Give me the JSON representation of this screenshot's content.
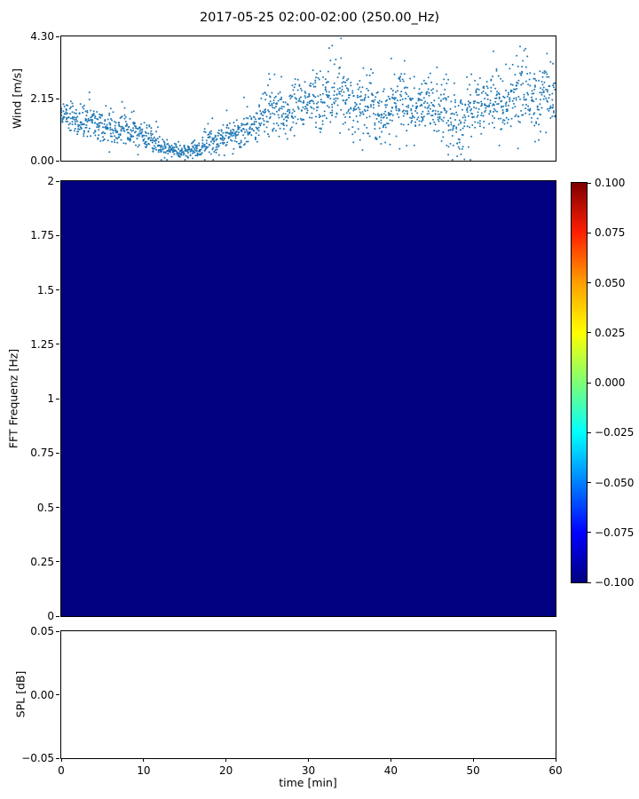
{
  "title": "2017-05-25 02:00-02:00 (250.00_Hz)",
  "colors": {
    "scatter": "#1f77b4",
    "heatmap_fill": "#000080",
    "axis": "#000000",
    "jet_stops_min_to_max": [
      "#000080",
      "#0000ff",
      "#0080ff",
      "#00ffff",
      "#7dff75",
      "#ffff00",
      "#ff9f00",
      "#ff1f00",
      "#7f0000"
    ]
  },
  "chart_data": [
    {
      "id": "wind",
      "type": "scatter",
      "title": "",
      "ylabel": "Wind [m/s]",
      "ylim": [
        0,
        4.3
      ],
      "ytick_values": [
        0,
        2.15,
        4.3
      ],
      "ytick_labels": [
        "0.00",
        "2.15",
        "4.30"
      ],
      "xlim": [
        0,
        60
      ],
      "points_per_minute": 32,
      "wind_mean_per_min": [
        1.6,
        1.5,
        1.4,
        1.3,
        1.2,
        1.1,
        1.0,
        1.1,
        1.0,
        0.9,
        0.8,
        0.6,
        0.45,
        0.35,
        0.3,
        0.35,
        0.45,
        0.6,
        0.7,
        0.8,
        0.9,
        1.0,
        1.1,
        1.2,
        1.5,
        1.9,
        1.7,
        1.6,
        1.9,
        2.0,
        2.1,
        2.0,
        2.2,
        2.5,
        2.3,
        1.9,
        2.2,
        2.0,
        1.7,
        1.6,
        2.0,
        2.2,
        1.9,
        1.8,
        2.0,
        1.7,
        1.9,
        1.5,
        1.2,
        1.8,
        2.0,
        1.9,
        2.1,
        2.0,
        2.2,
        2.6,
        2.3,
        2.0,
        2.2,
        1.9
      ],
      "wind_spread_per_min": [
        0.5,
        0.5,
        0.5,
        0.5,
        0.45,
        0.45,
        0.4,
        0.45,
        0.4,
        0.4,
        0.35,
        0.3,
        0.25,
        0.2,
        0.2,
        0.25,
        0.3,
        0.35,
        0.4,
        0.4,
        0.45,
        0.5,
        0.5,
        0.55,
        0.7,
        0.9,
        0.8,
        0.7,
        0.8,
        0.8,
        0.9,
        0.9,
        1.0,
        1.2,
        1.1,
        0.9,
        1.0,
        0.9,
        0.8,
        0.8,
        0.9,
        1.0,
        0.9,
        0.8,
        0.9,
        0.8,
        0.9,
        0.8,
        0.9,
        0.9,
        0.9,
        0.8,
        0.9,
        0.9,
        1.0,
        1.3,
        1.0,
        0.9,
        1.0,
        0.9
      ]
    },
    {
      "id": "fft",
      "type": "heatmap",
      "ylabel": "FFT Frequenz [Hz]",
      "ylim": [
        0,
        2
      ],
      "ytick_values": [
        0,
        0.25,
        0.5,
        0.75,
        1,
        1.25,
        1.5,
        1.75,
        2
      ],
      "ytick_labels": [
        "0",
        "0.25",
        "0.5",
        "0.75",
        "1",
        "1.25",
        "1.5",
        "1.75",
        "2"
      ],
      "xlim": [
        0,
        60
      ],
      "uniform_value": -0.1,
      "colorbar": {
        "cmap": "jet",
        "range": [
          -0.1,
          0.1
        ],
        "tick_values": [
          0.1,
          0.075,
          0.05,
          0.025,
          0,
          -0.025,
          -0.05,
          -0.075,
          -0.1
        ],
        "tick_labels": [
          "0.100",
          "0.075",
          "0.050",
          "0.025",
          "0.000",
          "−0.025",
          "−0.050",
          "−0.075",
          "−0.100"
        ]
      }
    },
    {
      "id": "spl",
      "type": "line",
      "ylabel": "SPL [dB]",
      "xlabel": "time [min]",
      "ylim": [
        -0.05,
        0.05
      ],
      "ytick_values": [
        0.05,
        0,
        -0.05
      ],
      "ytick_labels": [
        "0.05",
        "0.00",
        "−0.05"
      ],
      "xlim": [
        0,
        60
      ],
      "xtick_values": [
        0,
        10,
        20,
        30,
        40,
        50,
        60
      ],
      "xtick_labels": [
        "0",
        "10",
        "20",
        "30",
        "40",
        "50",
        "60"
      ],
      "values": []
    }
  ]
}
